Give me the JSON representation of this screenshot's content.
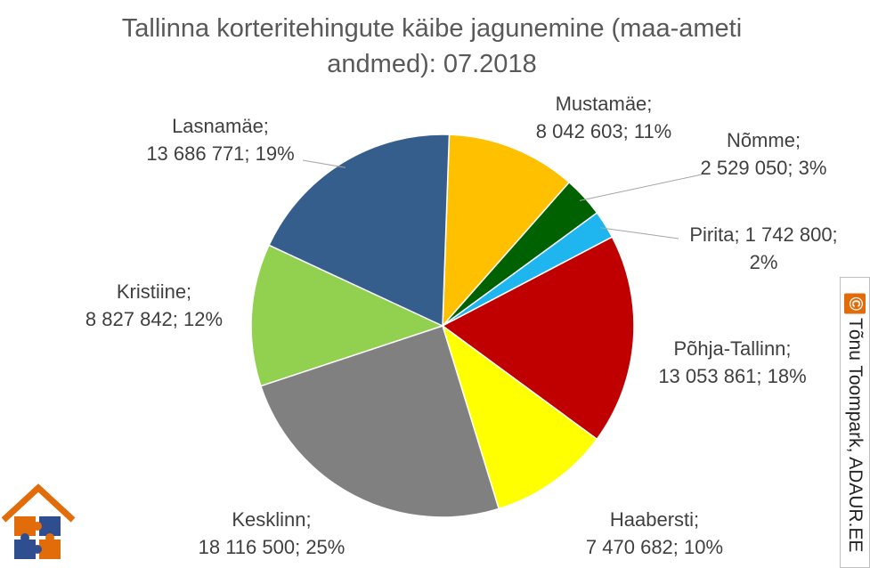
{
  "chart_data": {
    "type": "pie",
    "title": "Tallinna korteritehingute käibe jagunemine (maa-ameti andmed): 07.2018",
    "title_lines": [
      "Tallinna korteritehingute käibe jagunemine (maa-ameti",
      "andmed): 07.2018"
    ],
    "start_angle_deg": 2,
    "slices": [
      {
        "name": "Mustamäe",
        "value": 8042603,
        "percent": "11%",
        "color": "#ffc000",
        "label_lines": [
          "Mustamäe;",
          "8 042 603; 11%"
        ]
      },
      {
        "name": "Nõmme",
        "value": 2529050,
        "percent": "3%",
        "color": "#006100",
        "label_lines": [
          "Nõmme;",
          "2 529 050; 3%"
        ]
      },
      {
        "name": "Pirita",
        "value": 1742800,
        "percent": "2%",
        "color": "#1fb6f0",
        "label_lines": [
          "Pirita; 1 742 800;",
          "2%"
        ]
      },
      {
        "name": "Põhja-Tallinn",
        "value": 13053861,
        "percent": "18%",
        "color": "#c00000",
        "label_lines": [
          "Põhja-Tallinn;",
          "13 053 861; 18%"
        ]
      },
      {
        "name": "Haabersti",
        "value": 7470682,
        "percent": "10%",
        "color": "#ffff00",
        "label_lines": [
          "Haabersti;",
          "7 470 682; 10%"
        ]
      },
      {
        "name": "Kesklinn",
        "value": 18116500,
        "percent": "25%",
        "color": "#808080",
        "label_lines": [
          "Kesklinn;",
          "18 116 500; 25%"
        ]
      },
      {
        "name": "Kristiine",
        "value": 8827842,
        "percent": "12%",
        "color": "#92d050",
        "label_lines": [
          "Kristiine;",
          "8 827 842; 12%"
        ]
      },
      {
        "name": "Lasnamäe",
        "value": 13686771,
        "percent": "19%",
        "color": "#355e8d",
        "label_lines": [
          "Lasnamäe;",
          "13 686 771; 19%"
        ]
      }
    ]
  },
  "credit": {
    "symbol": "©",
    "text": "Tõnu Toompark, ADAUR.EE",
    "accent": "#e26b0a"
  },
  "logo": {
    "icon": "house-puzzle-logo",
    "colors": [
      "#e26b0a",
      "#2e4e8f"
    ]
  }
}
